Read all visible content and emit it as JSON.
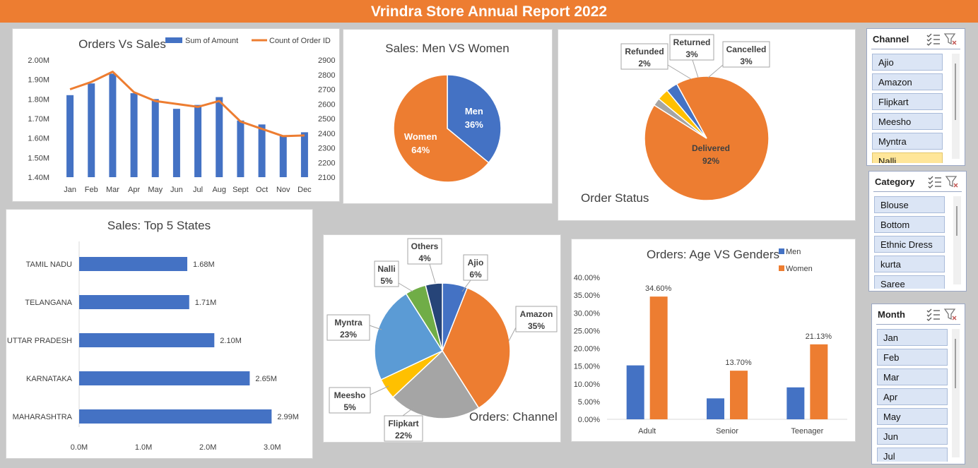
{
  "report_title": "Vrindra Store Annual Report 2022",
  "icons": {
    "multiselect": "multi-select-icon",
    "clear_filter": "clear-filter-icon"
  },
  "colors": {
    "blue": "#4472c4",
    "orange": "#ed7d31",
    "gray": "#a5a5a5",
    "yellow": "#ffc000",
    "green": "#70ad47",
    "navy": "#264478",
    "light_blue": "#5b9bd5",
    "banner": "#ed7d31"
  },
  "chart_data": [
    {
      "id": "orders_vs_sales",
      "type": "bar+line",
      "title": "Orders Vs Sales",
      "categories": [
        "Jan",
        "Feb",
        "Mar",
        "Apr",
        "May",
        "Jun",
        "Jul",
        "Aug",
        "Sept",
        "Oct",
        "Nov",
        "Dec"
      ],
      "series": [
        {
          "name": "Sum of Amount",
          "type": "bar",
          "axis": "left",
          "values": [
            1.82,
            1.88,
            1.93,
            1.83,
            1.8,
            1.75,
            1.77,
            1.81,
            1.69,
            1.67,
            1.61,
            1.63
          ]
        },
        {
          "name": "Count of Order ID",
          "type": "line",
          "axis": "right",
          "values": [
            2700,
            2750,
            2820,
            2680,
            2620,
            2600,
            2580,
            2620,
            2480,
            2430,
            2380,
            2385
          ]
        }
      ],
      "y_left": {
        "min": 1.4,
        "max": 2.0,
        "ticks": [
          "1.40M",
          "1.50M",
          "1.60M",
          "1.70M",
          "1.80M",
          "1.90M",
          "2.00M"
        ]
      },
      "y_right": {
        "min": 2100,
        "max": 2900,
        "ticks": [
          "2100",
          "2200",
          "2300",
          "2400",
          "2500",
          "2600",
          "2700",
          "2800",
          "2900"
        ]
      },
      "legend": "top"
    },
    {
      "id": "men_vs_women",
      "type": "pie",
      "title": "Sales: Men VS Women",
      "slices": [
        {
          "label": "Men",
          "value": 36,
          "pct_label": "36%",
          "color": "#4472c4"
        },
        {
          "label": "Women",
          "value": 64,
          "pct_label": "64%",
          "color": "#ed7d31"
        }
      ]
    },
    {
      "id": "order_status",
      "type": "pie",
      "title": "Order Status",
      "slices": [
        {
          "label": "Delivered",
          "value": 92,
          "pct_label": "92%",
          "color": "#ed7d31"
        },
        {
          "label": "Refunded",
          "value": 2,
          "pct_label": "2%",
          "color": "#a5a5a5"
        },
        {
          "label": "Returned",
          "value": 3,
          "pct_label": "3%",
          "color": "#ffc000"
        },
        {
          "label": "Cancelled",
          "value": 3,
          "pct_label": "3%",
          "color": "#4472c4"
        }
      ]
    },
    {
      "id": "top_states",
      "type": "bar",
      "orientation": "horizontal",
      "title": "Sales: Top 5 States",
      "categories": [
        "TAMIL NADU",
        "TELANGANA",
        "UTTAR PRADESH",
        "KARNATAKA",
        "MAHARASHTRA"
      ],
      "values": [
        1.68,
        1.71,
        2.1,
        2.65,
        2.99
      ],
      "value_labels": [
        "1.68M",
        "1.71M",
        "2.10M",
        "2.65M",
        "2.99M"
      ],
      "x_ticks": [
        "0.0M",
        "1.0M",
        "2.0M",
        "3.0M"
      ],
      "xlim": [
        0,
        3.2
      ]
    },
    {
      "id": "orders_channel",
      "type": "pie",
      "title": "Orders: Channel",
      "slices": [
        {
          "label": "Ajio",
          "value": 6,
          "pct_label": "6%",
          "color": "#4472c4"
        },
        {
          "label": "Amazon",
          "value": 35,
          "pct_label": "35%",
          "color": "#ed7d31"
        },
        {
          "label": "Flipkart",
          "value": 22,
          "pct_label": "22%",
          "color": "#a5a5a5"
        },
        {
          "label": "Meesho",
          "value": 5,
          "pct_label": "5%",
          "color": "#ffc000"
        },
        {
          "label": "Myntra",
          "value": 23,
          "pct_label": "23%",
          "color": "#5b9bd5"
        },
        {
          "label": "Nalli",
          "value": 5,
          "pct_label": "5%",
          "color": "#70ad47"
        },
        {
          "label": "Others",
          "value": 4,
          "pct_label": "4%",
          "color": "#264478"
        }
      ]
    },
    {
      "id": "age_vs_gender",
      "type": "bar",
      "title": "Orders: Age VS Genders",
      "categories": [
        "Adult",
        "Senior",
        "Teenager"
      ],
      "series": [
        {
          "name": "Men",
          "values": [
            15.2,
            5.9,
            9.0
          ],
          "color": "#4472c4"
        },
        {
          "name": "Women",
          "values": [
            34.6,
            13.7,
            21.13
          ],
          "labels": [
            "34.60%",
            "13.70%",
            "21.13%"
          ],
          "color": "#ed7d31"
        }
      ],
      "y_ticks": [
        "0.00%",
        "5.00%",
        "10.00%",
        "15.00%",
        "20.00%",
        "25.00%",
        "30.00%",
        "35.00%",
        "40.00%"
      ],
      "ylim": [
        0,
        40
      ],
      "legend": "top-right"
    }
  ],
  "slicers": [
    {
      "id": "channel",
      "title": "Channel",
      "items": [
        "Ajio",
        "Amazon",
        "Flipkart",
        "Meesho",
        "Myntra",
        "Nalli"
      ],
      "selected": 5
    },
    {
      "id": "category",
      "title": "Category",
      "items": [
        "Blouse",
        "Bottom",
        "Ethnic Dress",
        "kurta",
        "Saree"
      ],
      "selected": -1
    },
    {
      "id": "month",
      "title": "Month",
      "items": [
        "Jan",
        "Feb",
        "Mar",
        "Apr",
        "May",
        "Jun",
        "Jul"
      ],
      "selected": -1
    }
  ]
}
